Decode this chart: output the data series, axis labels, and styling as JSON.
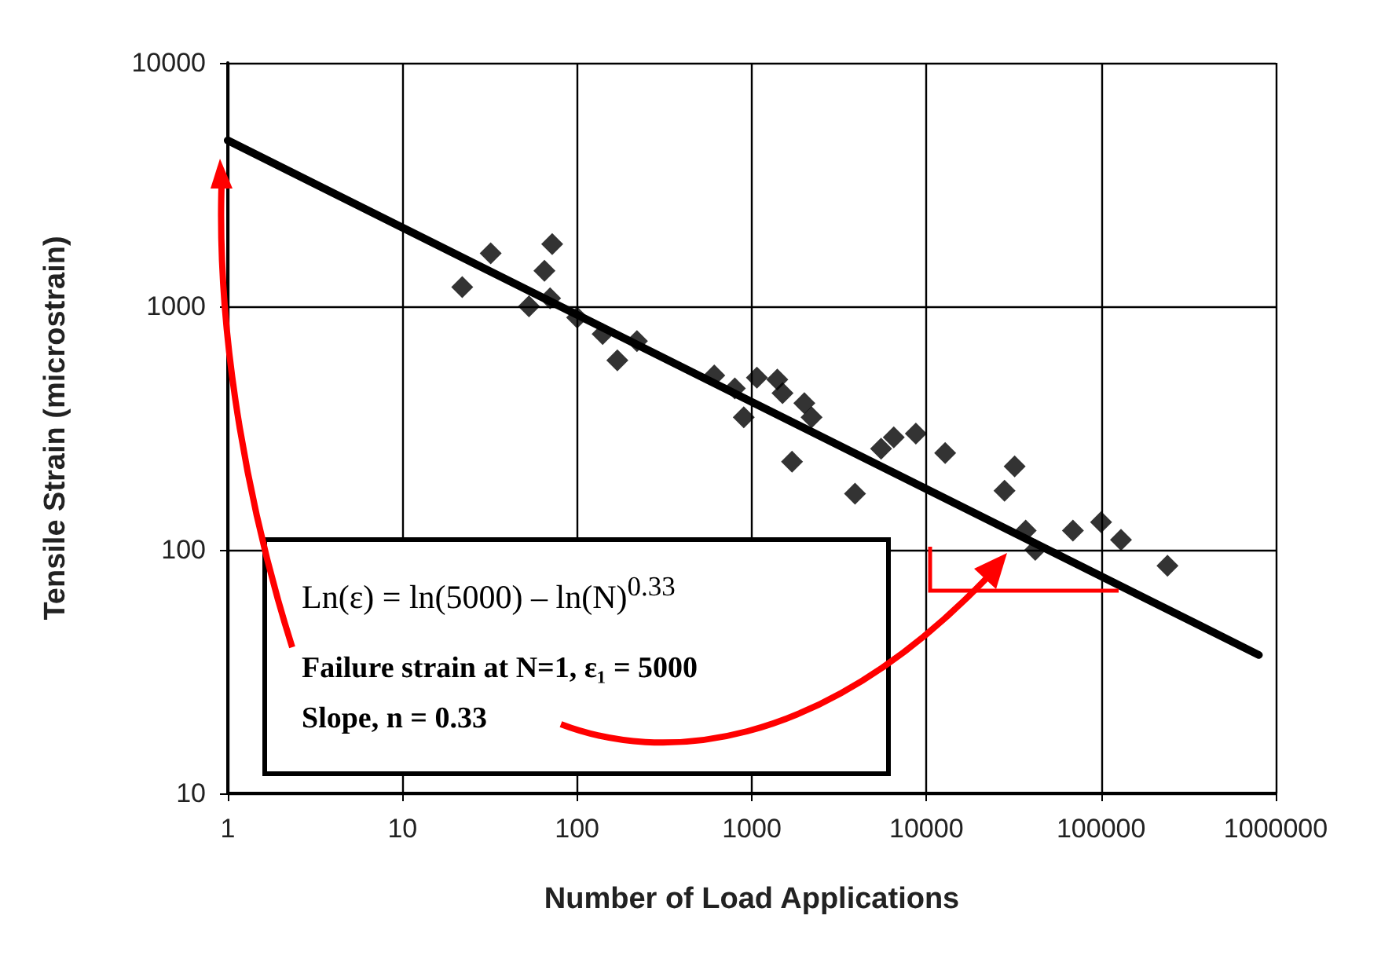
{
  "chart_data": {
    "type": "scatter",
    "xlabel": "Number of Load Applications",
    "ylabel": "Tensile Strain (microstrain)",
    "log": "xy",
    "xlim": [
      1,
      1000000
    ],
    "xticks": [
      1,
      10,
      100,
      1000,
      10000,
      100000,
      1000000
    ],
    "ylim": [
      10,
      10000
    ],
    "yticks": [
      10,
      100,
      1000,
      10000
    ],
    "grid": true,
    "marker": "diamond",
    "series": [
      {
        "color": "#000000",
        "x": [
          22,
          32,
          53,
          65,
          70,
          72,
          100,
          140,
          170,
          220,
          610,
          800,
          900,
          1070,
          1400,
          1500,
          1700,
          2000,
          2200,
          3900,
          5500,
          6500,
          8700,
          12800,
          28000,
          32000,
          37000,
          42000,
          69000,
          100000,
          130000,
          240000
        ],
        "values": [
          1200,
          1650,
          1000,
          1400,
          1080,
          1800,
          900,
          770,
          600,
          720,
          520,
          460,
          350,
          510,
          500,
          440,
          230,
          400,
          350,
          170,
          260,
          290,
          300,
          250,
          175,
          220,
          120,
          100,
          120,
          130,
          110,
          86
        ]
      },
      {
        "type": "line",
        "marker": "none",
        "color": "#000000",
        "x": [
          1,
          800000
        ],
        "values": [
          4800,
          37
        ]
      }
    ],
    "annotations": [
      "Ln(ε) = ln(5000) – ln(N)$^{0.33}$",
      "Failure strain at N=1, ε₁ = 5000",
      "Slope, n = 0.33"
    ]
  }
}
